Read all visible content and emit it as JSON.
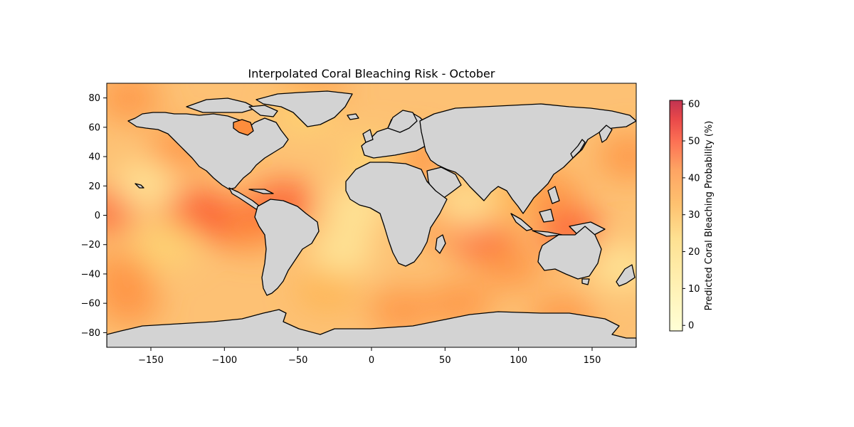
{
  "chart_data": {
    "type": "heatmap",
    "title": "Interpolated Coral Bleaching Risk - October",
    "xlabel": "",
    "ylabel": "",
    "xlim": [
      -180,
      180
    ],
    "ylim": [
      -90,
      90
    ],
    "xticks": [
      -150,
      -100,
      -50,
      0,
      50,
      100,
      150
    ],
    "yticks": [
      -80,
      -60,
      -40,
      -20,
      0,
      20,
      40,
      60,
      80
    ],
    "colorbar": {
      "label": "Predicted Coral Bleaching Probability (%)",
      "range": [
        -1.5,
        61
      ],
      "ticks": [
        0,
        10,
        20,
        30,
        40,
        50,
        60
      ],
      "colormap": "YlOrRd",
      "alpha": 0.75
    },
    "land_color": "#d3d3d3",
    "coastline_color": "#000000",
    "hotspots": [
      {
        "lon": -178,
        "lat": 5,
        "value": 42
      },
      {
        "lon": -165,
        "lat": 80,
        "value": 40
      },
      {
        "lon": -120,
        "lat": 3,
        "value": 42
      },
      {
        "lon": -95,
        "lat": -5,
        "value": 45
      },
      {
        "lon": -80,
        "lat": -10,
        "value": 40
      },
      {
        "lon": -60,
        "lat": 8,
        "value": 45
      },
      {
        "lon": -165,
        "lat": -60,
        "value": 38
      },
      {
        "lon": -130,
        "lat": 45,
        "value": 36
      },
      {
        "lon": -170,
        "lat": -40,
        "value": 36
      },
      {
        "lon": 50,
        "lat": -5,
        "value": 40
      },
      {
        "lon": 75,
        "lat": -15,
        "value": 45
      },
      {
        "lon": 95,
        "lat": -35,
        "value": 40
      },
      {
        "lon": 60,
        "lat": -60,
        "value": 40
      },
      {
        "lon": 120,
        "lat": 15,
        "value": 38
      },
      {
        "lon": 135,
        "lat": -10,
        "value": 45
      },
      {
        "lon": 130,
        "lat": -70,
        "value": 40
      },
      {
        "lon": 175,
        "lat": 40,
        "value": 36
      },
      {
        "lon": 20,
        "lat": -65,
        "value": 38
      },
      {
        "lon": 30,
        "lat": 38,
        "value": 40
      },
      {
        "lon": -40,
        "lat": 85,
        "value": 38
      },
      {
        "lon": 90,
        "lat": 10,
        "value": 34
      },
      {
        "lon": -30,
        "lat": -50,
        "value": 30
      }
    ],
    "coolspots": [
      {
        "lon": -10,
        "lat": 5,
        "value": 12
      },
      {
        "lon": -20,
        "lat": -25,
        "value": 16
      },
      {
        "lon": -155,
        "lat": 20,
        "value": 16
      },
      {
        "lon": 0,
        "lat": 40,
        "value": 20
      },
      {
        "lon": 170,
        "lat": -35,
        "value": 15
      },
      {
        "lon": -140,
        "lat": -20,
        "value": 20
      },
      {
        "lon": 65,
        "lat": 5,
        "value": 18
      },
      {
        "lon": -45,
        "lat": 70,
        "value": 20
      }
    ]
  }
}
